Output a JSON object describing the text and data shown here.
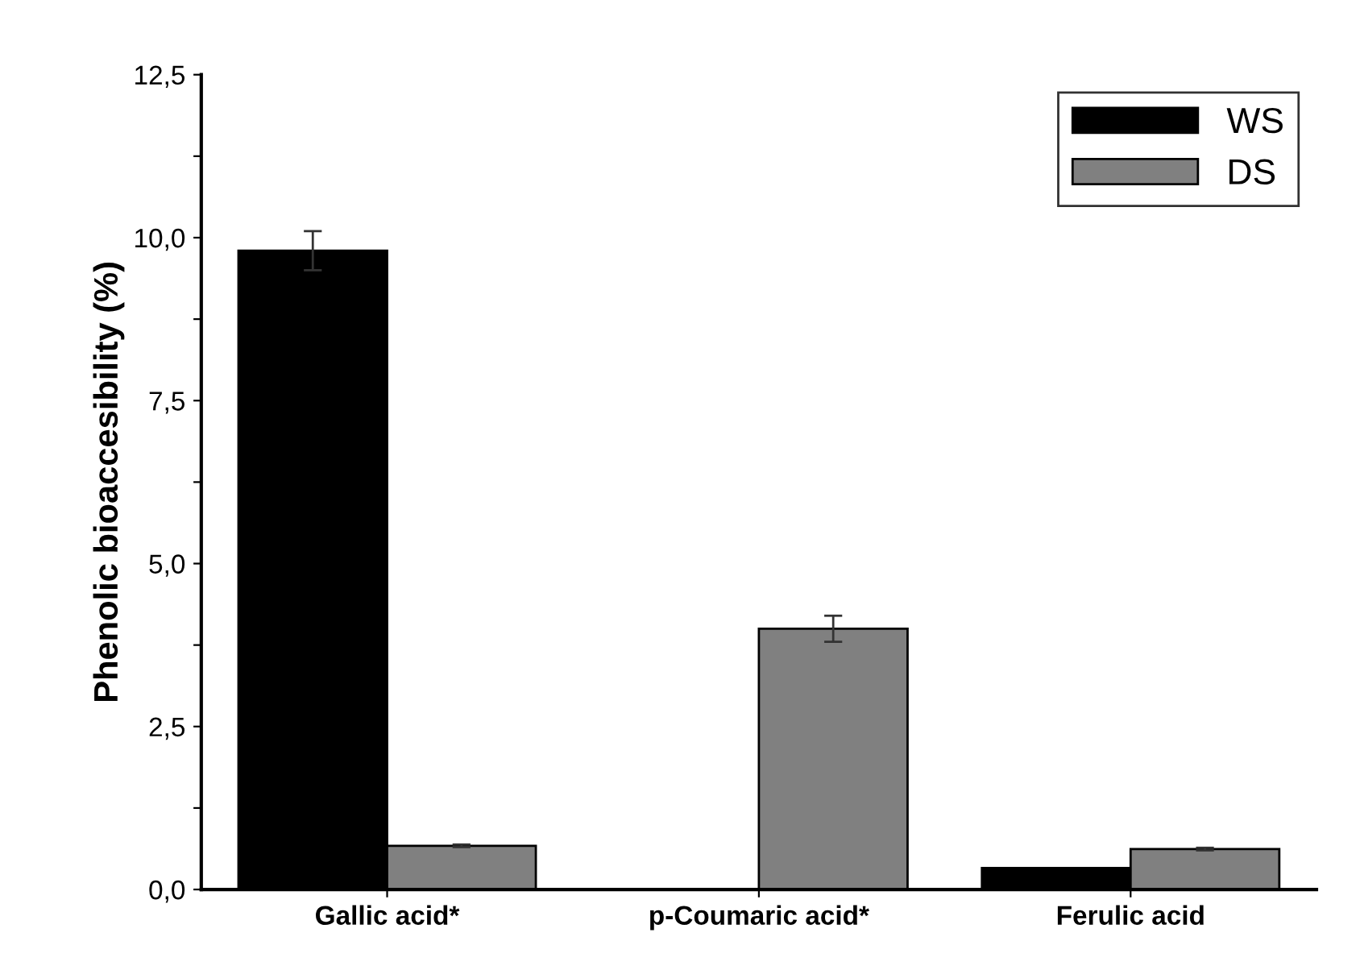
{
  "chart_data": {
    "type": "bar",
    "ylabel": "Phenolic bioaccesibility (%)",
    "categories": [
      "Gallic acid*",
      "p-Coumaric acid*",
      "Ferulic acid"
    ],
    "series": [
      {
        "name": "WS",
        "color": "#000000",
        "values": [
          9.8,
          0,
          0.33
        ],
        "errors": [
          0.3,
          null,
          null
        ]
      },
      {
        "name": "DS",
        "color": "#808080",
        "values": [
          0.67,
          4.0,
          0.62
        ],
        "errors": [
          0.02,
          0.2,
          0.02
        ]
      }
    ],
    "ylim": [
      0,
      12.5
    ],
    "yticks": [
      {
        "value": 0,
        "label": "0,0"
      },
      {
        "value": 1.25,
        "label": null
      },
      {
        "value": 2.5,
        "label": "2,5"
      },
      {
        "value": 3.75,
        "label": null
      },
      {
        "value": 5,
        "label": "5,0"
      },
      {
        "value": 6.25,
        "label": null
      },
      {
        "value": 7.5,
        "label": "7,5"
      },
      {
        "value": 8.75,
        "label": null
      },
      {
        "value": 10,
        "label": "10,0"
      },
      {
        "value": 11.25,
        "label": null
      },
      {
        "value": 12.5,
        "label": "12,5"
      }
    ],
    "legend": "top right",
    "grid": false
  }
}
